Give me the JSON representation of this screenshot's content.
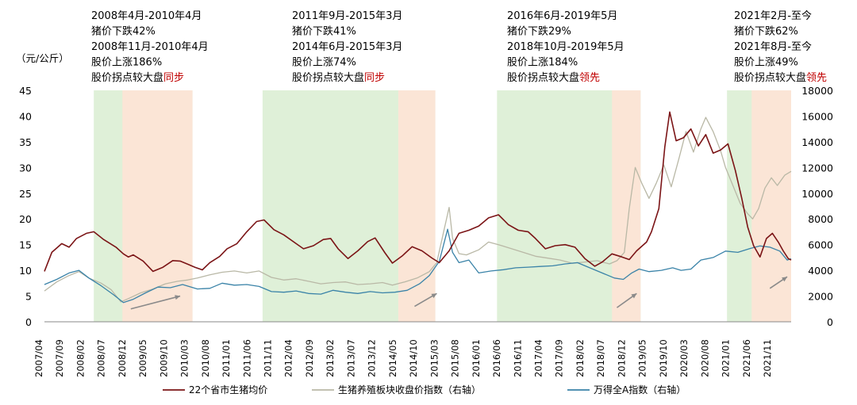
{
  "chart_data": {
    "type": "line",
    "y_left_unit": "（元/公斤）",
    "y_left_ticks": [
      "0",
      "5",
      "10",
      "15",
      "20",
      "25",
      "30",
      "35",
      "40",
      "45"
    ],
    "y_right_ticks": [
      "0",
      "2000",
      "4000",
      "6000",
      "8000",
      "10000",
      "12000",
      "14000",
      "16000",
      "18000"
    ],
    "ylim_left": [
      0,
      45
    ],
    "ylim_right": [
      0,
      18000
    ],
    "x_ticks": [
      "2007/04",
      "2007/09",
      "2008/02",
      "2008/07",
      "2008/12",
      "2009/05",
      "2009/10",
      "2010/03",
      "2010/08",
      "2011/01",
      "2011/06",
      "2011/11",
      "2012/04",
      "2012/09",
      "2013/02",
      "2013/07",
      "2013/12",
      "2014/05",
      "2014/10",
      "2015/03",
      "2015/08",
      "2016/01",
      "2016/06",
      "2016/11",
      "2017/04",
      "2017/09",
      "2018/02",
      "2018/07",
      "2018/12",
      "2019/05",
      "2019/10",
      "2020/03",
      "2020/08",
      "2021/01",
      "2021/06",
      "2021/11"
    ],
    "series": [
      {
        "name": "22个省市生猪均价",
        "axis": "left",
        "color": "#7b1416",
        "points": [
          [
            2007.25,
            9.8
          ],
          [
            2007.4,
            13.5
          ],
          [
            2007.6,
            15.2
          ],
          [
            2007.75,
            14.5
          ],
          [
            2007.9,
            16.2
          ],
          [
            2008.1,
            17.2
          ],
          [
            2008.25,
            17.5
          ],
          [
            2008.45,
            16.0
          ],
          [
            2008.7,
            14.5
          ],
          [
            2008.85,
            13.2
          ],
          [
            2008.95,
            12.6
          ],
          [
            2009.05,
            13.0
          ],
          [
            2009.25,
            11.8
          ],
          [
            2009.45,
            9.8
          ],
          [
            2009.65,
            10.6
          ],
          [
            2009.85,
            11.9
          ],
          [
            2010.0,
            11.8
          ],
          [
            2010.15,
            11.2
          ],
          [
            2010.3,
            10.6
          ],
          [
            2010.45,
            10.1
          ],
          [
            2010.6,
            11.5
          ],
          [
            2010.8,
            12.7
          ],
          [
            2010.95,
            14.2
          ],
          [
            2011.15,
            15.2
          ],
          [
            2011.35,
            17.5
          ],
          [
            2011.55,
            19.5
          ],
          [
            2011.7,
            19.8
          ],
          [
            2011.9,
            17.9
          ],
          [
            2012.1,
            16.9
          ],
          [
            2012.35,
            15.2
          ],
          [
            2012.5,
            14.2
          ],
          [
            2012.7,
            14.8
          ],
          [
            2012.9,
            16.0
          ],
          [
            2013.05,
            16.2
          ],
          [
            2013.2,
            14.2
          ],
          [
            2013.4,
            12.3
          ],
          [
            2013.6,
            13.8
          ],
          [
            2013.8,
            15.6
          ],
          [
            2013.95,
            16.3
          ],
          [
            2014.15,
            13.4
          ],
          [
            2014.3,
            11.4
          ],
          [
            2014.5,
            12.8
          ],
          [
            2014.7,
            14.6
          ],
          [
            2014.9,
            13.8
          ],
          [
            2015.1,
            12.4
          ],
          [
            2015.25,
            11.5
          ],
          [
            2015.45,
            13.8
          ],
          [
            2015.65,
            17.2
          ],
          [
            2015.85,
            17.8
          ],
          [
            2016.05,
            18.6
          ],
          [
            2016.25,
            20.2
          ],
          [
            2016.45,
            20.8
          ],
          [
            2016.65,
            18.9
          ],
          [
            2016.85,
            17.8
          ],
          [
            2017.05,
            17.5
          ],
          [
            2017.2,
            16.2
          ],
          [
            2017.4,
            14.2
          ],
          [
            2017.6,
            14.8
          ],
          [
            2017.8,
            15.0
          ],
          [
            2018.0,
            14.5
          ],
          [
            2018.2,
            12.3
          ],
          [
            2018.4,
            10.8
          ],
          [
            2018.55,
            11.6
          ],
          [
            2018.75,
            13.2
          ],
          [
            2018.95,
            12.6
          ],
          [
            2019.1,
            12.1
          ],
          [
            2019.25,
            13.8
          ],
          [
            2019.45,
            15.5
          ],
          [
            2019.55,
            17.5
          ],
          [
            2019.7,
            22.0
          ],
          [
            2019.82,
            34.0
          ],
          [
            2019.92,
            40.8
          ],
          [
            2020.05,
            35.2
          ],
          [
            2020.2,
            35.8
          ],
          [
            2020.35,
            37.5
          ],
          [
            2020.5,
            34.2
          ],
          [
            2020.65,
            36.4
          ],
          [
            2020.8,
            32.8
          ],
          [
            2020.95,
            33.4
          ],
          [
            2021.1,
            34.6
          ],
          [
            2021.25,
            29.4
          ],
          [
            2021.38,
            24.0
          ],
          [
            2021.5,
            18.4
          ],
          [
            2021.62,
            14.8
          ],
          [
            2021.75,
            12.6
          ],
          [
            2021.88,
            16.2
          ],
          [
            2022.0,
            17.2
          ],
          [
            2022.12,
            15.5
          ],
          [
            2022.22,
            13.8
          ],
          [
            2022.32,
            12.3
          ],
          [
            2022.38,
            12.0
          ]
        ]
      },
      {
        "name": "生猪养殖板块收盘价指数（右轴）",
        "axis": "right",
        "color": "#b9b8a6",
        "points": [
          [
            2007.25,
            2400
          ],
          [
            2007.5,
            3100
          ],
          [
            2007.75,
            3600
          ],
          [
            2007.95,
            3900
          ],
          [
            2008.15,
            3400
          ],
          [
            2008.4,
            3000
          ],
          [
            2008.6,
            2500
          ],
          [
            2008.8,
            1550
          ],
          [
            2008.95,
            1800
          ],
          [
            2009.2,
            2250
          ],
          [
            2009.45,
            2550
          ],
          [
            2009.7,
            2950
          ],
          [
            2009.95,
            3150
          ],
          [
            2010.15,
            3250
          ],
          [
            2010.35,
            3400
          ],
          [
            2010.6,
            3650
          ],
          [
            2010.85,
            3850
          ],
          [
            2011.1,
            3950
          ],
          [
            2011.35,
            3800
          ],
          [
            2011.6,
            3950
          ],
          [
            2011.85,
            3450
          ],
          [
            2012.1,
            3250
          ],
          [
            2012.35,
            3350
          ],
          [
            2012.6,
            3150
          ],
          [
            2012.85,
            2950
          ],
          [
            2013.1,
            3050
          ],
          [
            2013.35,
            3100
          ],
          [
            2013.6,
            2900
          ],
          [
            2013.85,
            2950
          ],
          [
            2014.1,
            3050
          ],
          [
            2014.3,
            2850
          ],
          [
            2014.55,
            3100
          ],
          [
            2014.8,
            3400
          ],
          [
            2015.05,
            3900
          ],
          [
            2015.2,
            4600
          ],
          [
            2015.35,
            7200
          ],
          [
            2015.45,
            8900
          ],
          [
            2015.52,
            6500
          ],
          [
            2015.65,
            5300
          ],
          [
            2015.8,
            5200
          ],
          [
            2016.05,
            5600
          ],
          [
            2016.25,
            6200
          ],
          [
            2016.45,
            6000
          ],
          [
            2016.7,
            5700
          ],
          [
            2016.95,
            5400
          ],
          [
            2017.2,
            5100
          ],
          [
            2017.45,
            4950
          ],
          [
            2017.7,
            4800
          ],
          [
            2017.95,
            4550
          ],
          [
            2018.2,
            4650
          ],
          [
            2018.45,
            4750
          ],
          [
            2018.7,
            4500
          ],
          [
            2018.85,
            4750
          ],
          [
            2019.0,
            5400
          ],
          [
            2019.1,
            8800
          ],
          [
            2019.22,
            12000
          ],
          [
            2019.35,
            10800
          ],
          [
            2019.5,
            9600
          ],
          [
            2019.65,
            10800
          ],
          [
            2019.8,
            12200
          ],
          [
            2019.95,
            10500
          ],
          [
            2020.1,
            12600
          ],
          [
            2020.25,
            14800
          ],
          [
            2020.4,
            13200
          ],
          [
            2020.55,
            15000
          ],
          [
            2020.65,
            15900
          ],
          [
            2020.8,
            14800
          ],
          [
            2020.95,
            13300
          ],
          [
            2021.05,
            12000
          ],
          [
            2021.2,
            10600
          ],
          [
            2021.35,
            9200
          ],
          [
            2021.5,
            8400
          ],
          [
            2021.6,
            8000
          ],
          [
            2021.72,
            8800
          ],
          [
            2021.85,
            10400
          ],
          [
            2021.98,
            11200
          ],
          [
            2022.1,
            10600
          ],
          [
            2022.25,
            11400
          ],
          [
            2022.38,
            11700
          ]
        ]
      },
      {
        "name": "万得全A指数（右轴）",
        "axis": "right",
        "color": "#3a83a8",
        "points": [
          [
            2007.25,
            2900
          ],
          [
            2007.5,
            3300
          ],
          [
            2007.75,
            3800
          ],
          [
            2007.95,
            4000
          ],
          [
            2008.15,
            3400
          ],
          [
            2008.4,
            2800
          ],
          [
            2008.65,
            2100
          ],
          [
            2008.85,
            1500
          ],
          [
            2009.05,
            1750
          ],
          [
            2009.3,
            2250
          ],
          [
            2009.55,
            2700
          ],
          [
            2009.8,
            2650
          ],
          [
            2010.05,
            2900
          ],
          [
            2010.35,
            2550
          ],
          [
            2010.6,
            2600
          ],
          [
            2010.85,
            3000
          ],
          [
            2011.1,
            2850
          ],
          [
            2011.35,
            2900
          ],
          [
            2011.6,
            2750
          ],
          [
            2011.85,
            2350
          ],
          [
            2012.1,
            2300
          ],
          [
            2012.35,
            2400
          ],
          [
            2012.6,
            2200
          ],
          [
            2012.85,
            2150
          ],
          [
            2013.1,
            2450
          ],
          [
            2013.35,
            2300
          ],
          [
            2013.6,
            2200
          ],
          [
            2013.85,
            2350
          ],
          [
            2014.1,
            2250
          ],
          [
            2014.35,
            2300
          ],
          [
            2014.6,
            2450
          ],
          [
            2014.85,
            2950
          ],
          [
            2015.05,
            3600
          ],
          [
            2015.25,
            4700
          ],
          [
            2015.42,
            7200
          ],
          [
            2015.52,
            5400
          ],
          [
            2015.65,
            4600
          ],
          [
            2015.85,
            4800
          ],
          [
            2016.05,
            3800
          ],
          [
            2016.3,
            3950
          ],
          [
            2016.55,
            4050
          ],
          [
            2016.8,
            4200
          ],
          [
            2017.05,
            4250
          ],
          [
            2017.3,
            4300
          ],
          [
            2017.55,
            4350
          ],
          [
            2017.8,
            4500
          ],
          [
            2018.05,
            4600
          ],
          [
            2018.3,
            4200
          ],
          [
            2018.55,
            3800
          ],
          [
            2018.8,
            3400
          ],
          [
            2018.98,
            3300
          ],
          [
            2019.15,
            3800
          ],
          [
            2019.3,
            4100
          ],
          [
            2019.5,
            3900
          ],
          [
            2019.75,
            4000
          ],
          [
            2019.98,
            4200
          ],
          [
            2020.15,
            4000
          ],
          [
            2020.35,
            4100
          ],
          [
            2020.55,
            4800
          ],
          [
            2020.8,
            5000
          ],
          [
            2021.05,
            5500
          ],
          [
            2021.3,
            5400
          ],
          [
            2021.55,
            5700
          ],
          [
            2021.75,
            5900
          ],
          [
            2021.95,
            5800
          ],
          [
            2022.15,
            5500
          ],
          [
            2022.3,
            4800
          ],
          [
            2022.38,
            4900
          ]
        ]
      }
    ],
    "shaded_periods": [
      {
        "kind": "pig-price-decline",
        "color": "#dff0d8",
        "start": 2008.25,
        "end": 2010.25
      },
      {
        "kind": "stock-price-rise",
        "color": "#fbe5d6",
        "start": 2008.83,
        "end": 2010.25
      },
      {
        "kind": "pig-price-decline",
        "color": "#dff0d8",
        "start": 2011.67,
        "end": 2015.17
      },
      {
        "kind": "stock-price-rise",
        "color": "#fbe5d6",
        "start": 2014.42,
        "end": 2015.17
      },
      {
        "kind": "pig-price-decline",
        "color": "#dff0d8",
        "start": 2016.42,
        "end": 2019.33
      },
      {
        "kind": "stock-price-rise",
        "color": "#fbe5d6",
        "start": 2018.75,
        "end": 2019.33
      },
      {
        "kind": "pig-price-decline",
        "color": "#dff0d8",
        "start": 2021.08,
        "end": 2022.38
      },
      {
        "kind": "stock-price-rise",
        "color": "#fbe5d6",
        "start": 2021.58,
        "end": 2022.38
      }
    ],
    "annotations": [
      {
        "lines": [
          "2008年4月-2010年4月",
          "猪价下跌42%",
          "2008年11月-2010年4月",
          "股价上涨186%"
        ],
        "last": "股价拐点较大盘",
        "tag": "同步",
        "tag_color": "#c00000"
      },
      {
        "lines": [
          "2011年9月-2015年3月",
          "猪价下跌41%",
          "2014年6月-2015年3月",
          "股价上涨74%"
        ],
        "last": "股价拐点较大盘",
        "tag": "同步",
        "tag_color": "#c00000"
      },
      {
        "lines": [
          "2016年6月-2019年5月",
          "猪价下跌29%",
          "2018年10月-2019年5月",
          "股价上涨184%"
        ],
        "last": "股价拐点较大盘",
        "tag": "领先",
        "tag_color": "#c00000"
      },
      {
        "lines": [
          "2021年2月-至今",
          "猪价下跌62%",
          "2021年8月-至今",
          "股价上涨49%"
        ],
        "last": "股价拐点较大盘",
        "tag": "领先",
        "tag_color": "#c00000"
      }
    ],
    "arrows": [
      {
        "from": [
          2009.0,
          1000
        ],
        "to": [
          2010.0,
          2000
        ]
      },
      {
        "from": [
          2014.75,
          1200
        ],
        "to": [
          2015.2,
          2200
        ]
      },
      {
        "from": [
          2018.85,
          1100
        ],
        "to": [
          2019.25,
          2200
        ]
      },
      {
        "from": [
          2021.95,
          2600
        ],
        "to": [
          2022.3,
          3500
        ]
      }
    ]
  }
}
